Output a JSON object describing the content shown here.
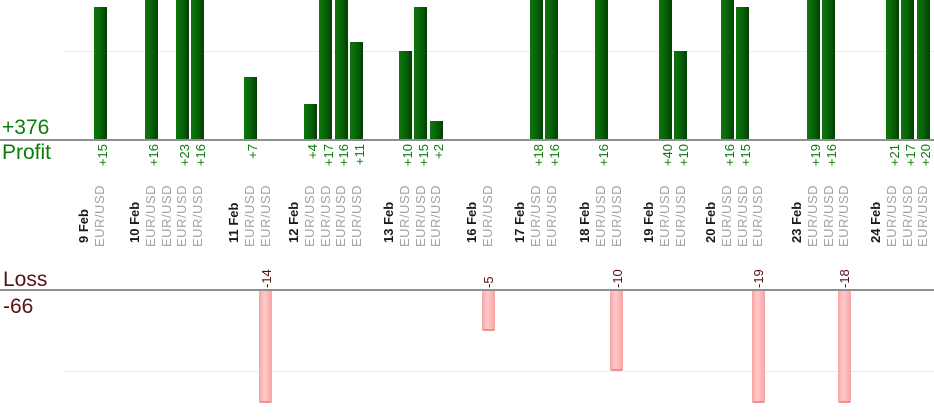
{
  "summary": {
    "profit_total": "+376",
    "profit_label": "Profit",
    "loss_label": "Loss",
    "loss_total": "-66"
  },
  "colors": {
    "profit_text": "#0a7d0a",
    "loss_text": "#571212",
    "bar_green_light": "#0d780d",
    "bar_green_dark": "#033f03",
    "bar_pink": "#f8a4a4",
    "bar_pink_light": "#ffc9c9",
    "bar_pink_edge": "#f09090",
    "symbol_text": "#a3a3a3",
    "date_text": "#1a1a1a",
    "axis_line": "#8f8f8f",
    "gridline": "#ececec"
  },
  "chart_data": {
    "type": "bar",
    "title": "",
    "totals": {
      "profit": 376,
      "loss": -66
    },
    "totals_display": {
      "profit": "+376",
      "loss": "-66"
    },
    "section_labels": {
      "top": "Profit",
      "bottom": "Loss"
    },
    "gridline_values": {
      "profit_section": 10,
      "loss_section": -10
    },
    "profit_axis_visible_max": 16,
    "loss_axis_visible_min": -14,
    "groups": [
      {
        "date": "9 Feb",
        "trades": [
          {
            "symbol": "EUR/USD",
            "value": 15,
            "label": "+15"
          }
        ]
      },
      {
        "date": "10 Feb",
        "trades": [
          {
            "symbol": "EUR/USD",
            "value": 16,
            "label": "+16"
          },
          {
            "symbol": "EUR/USD",
            "value": 0,
            "label": ""
          },
          {
            "symbol": "EUR/USD",
            "value": 23,
            "label": "+23"
          },
          {
            "symbol": "EUR/USD",
            "value": 16,
            "label": "+16"
          }
        ]
      },
      {
        "date": "11 Feb",
        "trades": [
          {
            "symbol": "EUR/USD",
            "value": 7,
            "label": "+7"
          },
          {
            "symbol": "EUR/USD",
            "value": -14,
            "label": "-14"
          }
        ]
      },
      {
        "date": "12 Feb",
        "trades": [
          {
            "symbol": "EUR/USD",
            "value": 4,
            "label": "+4"
          },
          {
            "symbol": "EUR/USD",
            "value": 17,
            "label": "+17"
          },
          {
            "symbol": "EUR/USD",
            "value": 16,
            "label": "+16"
          },
          {
            "symbol": "EUR/USD",
            "value": 11,
            "label": "+11"
          }
        ]
      },
      {
        "date": "13 Feb",
        "trades": [
          {
            "symbol": "EUR/USD",
            "value": 10,
            "label": "+10"
          },
          {
            "symbol": "EUR/USD",
            "value": 15,
            "label": "+15"
          },
          {
            "symbol": "EUR/USD",
            "value": 2,
            "label": "+2"
          }
        ]
      },
      {
        "date": "16 Feb",
        "trades": [
          {
            "symbol": "EUR/USD",
            "value": -5,
            "label": "-5"
          }
        ]
      },
      {
        "date": "17 Feb",
        "trades": [
          {
            "symbol": "EUR/USD",
            "value": 18,
            "label": "+18"
          },
          {
            "symbol": "EUR/USD",
            "value": 16,
            "label": "+16"
          }
        ]
      },
      {
        "date": "18 Feb",
        "trades": [
          {
            "symbol": "EUR/USD",
            "value": 16,
            "label": "+16"
          },
          {
            "symbol": "EUR/USD",
            "value": -10,
            "label": "-10"
          }
        ]
      },
      {
        "date": "19 Feb",
        "trades": [
          {
            "symbol": "EUR/USD",
            "value": 40,
            "label": "+40"
          },
          {
            "symbol": "EUR/USD",
            "value": 10,
            "label": "+10"
          }
        ]
      },
      {
        "date": "20 Feb",
        "trades": [
          {
            "symbol": "EUR/USD",
            "value": 16,
            "label": "+16"
          },
          {
            "symbol": "EUR/USD",
            "value": 15,
            "label": "+15"
          },
          {
            "symbol": "EUR/USD",
            "value": -19,
            "label": "-19"
          }
        ]
      },
      {
        "date": "23 Feb",
        "trades": [
          {
            "symbol": "EUR/USD",
            "value": 19,
            "label": "+19"
          },
          {
            "symbol": "EUR/USD",
            "value": 16,
            "label": "+16"
          },
          {
            "symbol": "EUR/USD",
            "value": -18,
            "label": "-18"
          }
        ]
      },
      {
        "date": "24 Feb",
        "trades": [
          {
            "symbol": "EUR/USD",
            "value": 21,
            "label": "+21"
          },
          {
            "symbol": "EUR/USD",
            "value": 17,
            "label": "+17"
          },
          {
            "symbol": "EUR/USD",
            "value": 20,
            "label": "+20"
          }
        ]
      }
    ]
  }
}
